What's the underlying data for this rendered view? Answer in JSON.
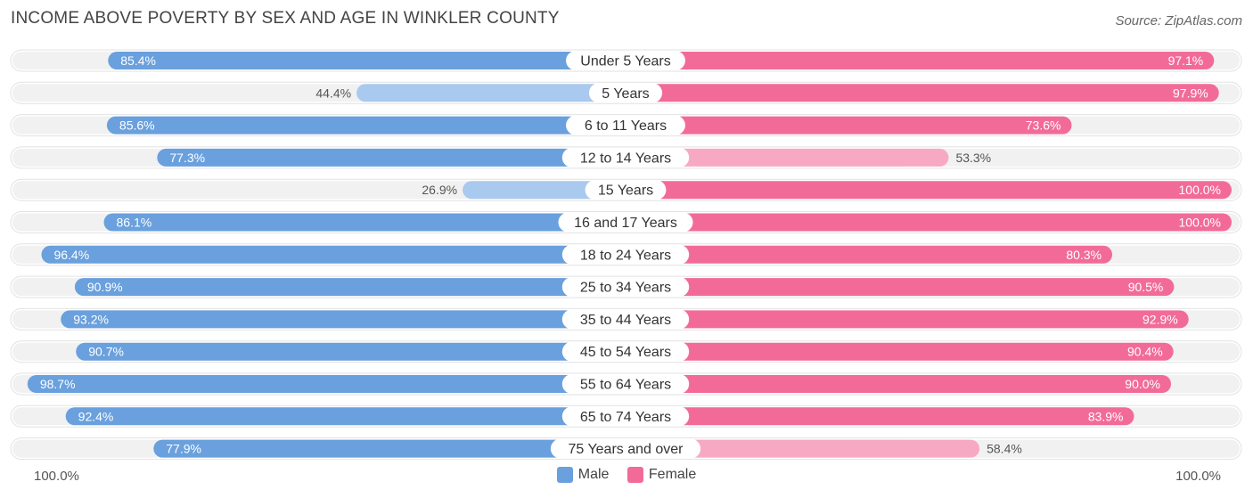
{
  "header": {
    "title": "INCOME ABOVE POVERTY BY SEX AND AGE IN WINKLER COUNTY",
    "source": "Source: ZipAtlas.com"
  },
  "axis": {
    "left_label": "100.0%",
    "right_label": "100.0%"
  },
  "legend": {
    "male_label": "Male",
    "female_label": "Female"
  },
  "colors": {
    "male_strong": "#6aa0dd",
    "male_light": "#a9c9ee",
    "female_strong": "#f26b98",
    "female_light": "#f7a9c4",
    "track": "#f1f1f1"
  },
  "chart_data": {
    "type": "bar",
    "orientation": "horizontal-diverging",
    "categories": [
      "Under 5 Years",
      "5 Years",
      "6 to 11 Years",
      "12 to 14 Years",
      "15 Years",
      "16 and 17 Years",
      "18 to 24 Years",
      "25 to 34 Years",
      "35 to 44 Years",
      "45 to 54 Years",
      "55 to 64 Years",
      "65 to 74 Years",
      "75 Years and over"
    ],
    "series": [
      {
        "name": "Male",
        "values": [
          85.4,
          44.4,
          85.6,
          77.3,
          26.9,
          86.1,
          96.4,
          90.9,
          93.2,
          90.7,
          98.7,
          92.4,
          77.9
        ],
        "labels": [
          "85.4%",
          "44.4%",
          "85.6%",
          "77.3%",
          "26.9%",
          "86.1%",
          "96.4%",
          "90.9%",
          "93.2%",
          "90.7%",
          "98.7%",
          "92.4%",
          "77.9%"
        ]
      },
      {
        "name": "Female",
        "values": [
          97.1,
          97.9,
          73.6,
          53.3,
          100.0,
          100.0,
          80.3,
          90.5,
          92.9,
          90.4,
          90.0,
          83.9,
          58.4
        ],
        "labels": [
          "97.1%",
          "97.9%",
          "73.6%",
          "53.3%",
          "100.0%",
          "100.0%",
          "80.3%",
          "90.5%",
          "92.9%",
          "90.4%",
          "90.0%",
          "83.9%",
          "58.4%"
        ]
      }
    ],
    "xlim": [
      0,
      100
    ],
    "legend_position": "bottom-center"
  }
}
